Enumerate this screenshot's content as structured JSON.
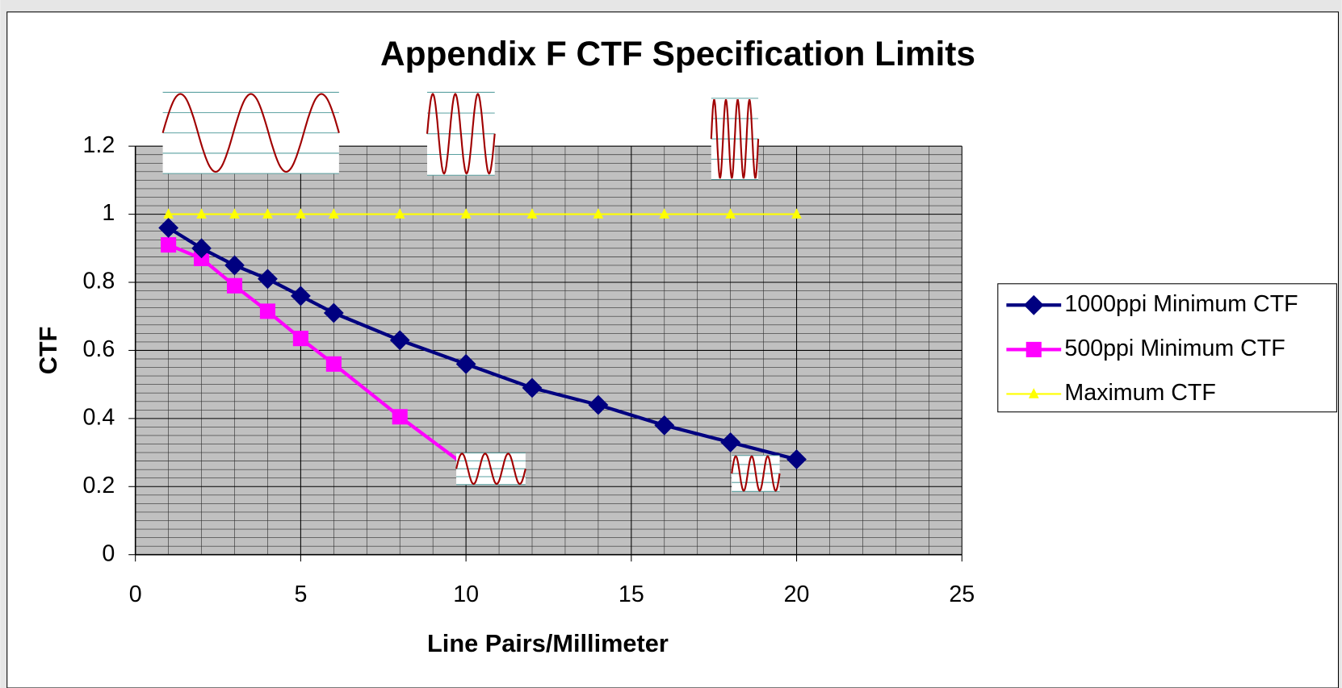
{
  "chart_data": {
    "type": "line",
    "title": "Appendix F CTF Specification Limits",
    "x_label": "Line Pairs/Millimeter",
    "y_label": "CTF",
    "xlim": [
      0,
      25
    ],
    "xticks": [
      0,
      5,
      10,
      15,
      20,
      25
    ],
    "ylim": [
      0,
      1.2
    ],
    "yticks": [
      0,
      0.2,
      0.4,
      0.6,
      0.8,
      1,
      1.2
    ],
    "grid": true,
    "legend": "right",
    "series": [
      {
        "name": "1000ppi Minimum CTF",
        "color": "#000080",
        "marker": "diamond",
        "x": [
          1,
          2,
          3,
          4,
          5,
          6,
          8,
          10,
          12,
          14,
          16,
          18,
          20
        ],
        "values": [
          0.96,
          0.9,
          0.85,
          0.81,
          0.76,
          0.71,
          0.63,
          0.56,
          0.49,
          0.44,
          0.38,
          0.33,
          0.28
        ]
      },
      {
        "name": "500ppi Minimum CTF",
        "color": "#ff00ff",
        "marker": "square",
        "x": [
          1,
          2,
          3,
          4,
          5,
          6,
          8,
          10
        ],
        "values": [
          0.91,
          0.87,
          0.79,
          0.715,
          0.635,
          0.56,
          0.405,
          0.26
        ]
      },
      {
        "name": "Maximum CTF",
        "color": "#ffff00",
        "marker": "triangle",
        "x": [
          1,
          2,
          3,
          4,
          5,
          6,
          8,
          10,
          12,
          14,
          16,
          18,
          20
        ],
        "values": [
          1,
          1,
          1,
          1,
          1,
          1,
          1,
          1,
          1,
          1,
          1,
          1,
          1
        ]
      }
    ]
  }
}
